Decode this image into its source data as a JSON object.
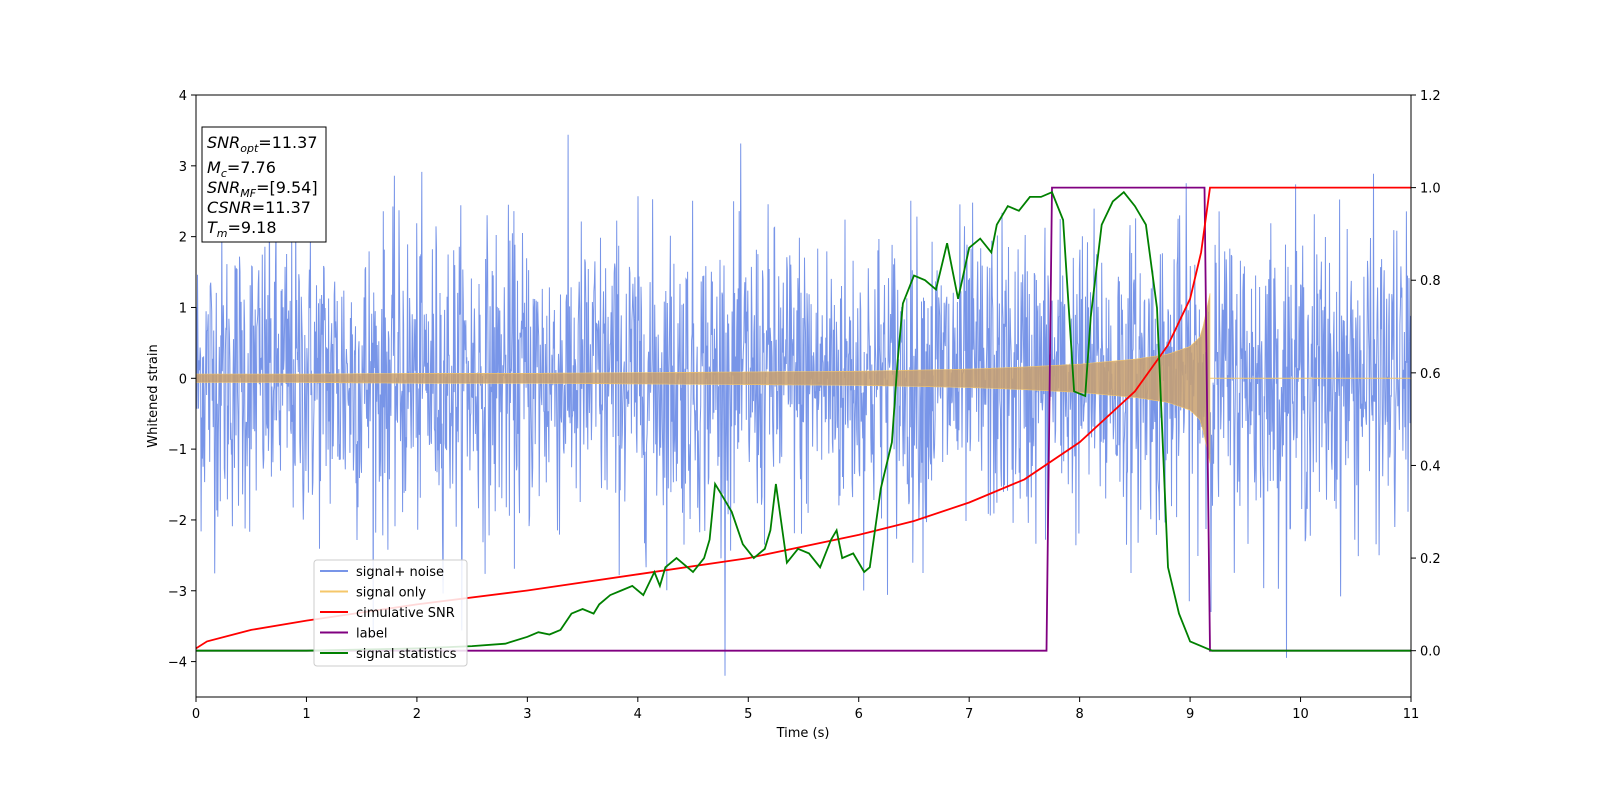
{
  "chart_data": {
    "type": "line",
    "title": "",
    "xlabel": "Time (s)",
    "ylabel": "Whitened strain",
    "y2label": "",
    "xlim": [
      0,
      11
    ],
    "ylim": [
      -4.5,
      4
    ],
    "y2lim": [
      -0.1,
      1.2
    ],
    "xticks": [
      0,
      1,
      2,
      3,
      4,
      5,
      6,
      7,
      8,
      9,
      10,
      11
    ],
    "yticks": [
      -4,
      -3,
      -2,
      -1,
      0,
      1,
      2,
      3,
      4
    ],
    "y2ticks": [
      0.0,
      0.2,
      0.4,
      0.6,
      0.8,
      1.0,
      1.2
    ],
    "grid": false,
    "legend_position": "lower-left",
    "annotation": {
      "lines": [
        {
          "sym": "SNR",
          "sub": "opt",
          "value": "=11.37"
        },
        {
          "sym": "M",
          "sub": "c",
          "value": "=7.76"
        },
        {
          "sym": "SNR",
          "sub": "MF",
          "value": "=[9.54]"
        },
        {
          "sym": "CSNR",
          "sub": "",
          "value": "=11.37"
        },
        {
          "sym": "T",
          "sub": "m",
          "value": "=9.18"
        }
      ]
    },
    "series": [
      {
        "name": "signal+ noise",
        "color": "#7895e8",
        "axis": "left",
        "style": "gaussian noise, amplitude ~1.2, peaks to ~3.5",
        "noise_range": [
          -4.2,
          3.6
        ]
      },
      {
        "name": "signal only",
        "color": "#f5c76a",
        "axis": "left",
        "style": "chirp",
        "envelope": {
          "x": [
            0,
            1,
            2,
            3,
            4,
            5,
            6,
            7,
            7.5,
            8,
            8.5,
            8.8,
            9.0,
            9.1,
            9.18
          ],
          "y": [
            0.06,
            0.06,
            0.07,
            0.07,
            0.08,
            0.09,
            0.1,
            0.13,
            0.16,
            0.2,
            0.27,
            0.34,
            0.45,
            0.6,
            1.2
          ]
        },
        "merger_time": 9.18
      },
      {
        "name": "cimulative SNR",
        "color": "#ff0000",
        "axis": "right",
        "x": [
          0,
          0.1,
          0.5,
          1,
          2,
          3,
          4,
          5,
          6,
          6.5,
          7,
          7.5,
          8,
          8.5,
          8.8,
          9.0,
          9.1,
          9.18,
          11
        ],
        "y": [
          0.005,
          0.02,
          0.045,
          0.065,
          0.1,
          0.13,
          0.165,
          0.2,
          0.25,
          0.28,
          0.32,
          0.37,
          0.45,
          0.56,
          0.66,
          0.76,
          0.86,
          1.0,
          1.0
        ]
      },
      {
        "name": "label",
        "color": "#800080",
        "axis": "right",
        "x": [
          0,
          7.7,
          7.75,
          9.13,
          9.18,
          11
        ],
        "y": [
          0,
          0,
          1,
          1,
          0,
          0
        ]
      },
      {
        "name": "signal statistics",
        "color": "#008000",
        "axis": "right",
        "x": [
          0,
          1,
          2,
          2.5,
          2.8,
          3.0,
          3.1,
          3.2,
          3.3,
          3.4,
          3.5,
          3.6,
          3.65,
          3.75,
          3.85,
          3.95,
          4.05,
          4.15,
          4.2,
          4.25,
          4.35,
          4.5,
          4.6,
          4.65,
          4.7,
          4.75,
          4.85,
          4.95,
          5.05,
          5.15,
          5.2,
          5.25,
          5.35,
          5.45,
          5.55,
          5.65,
          5.75,
          5.8,
          5.85,
          5.95,
          6.05,
          6.1,
          6.2,
          6.3,
          6.35,
          6.4,
          6.5,
          6.6,
          6.7,
          6.8,
          6.9,
          7.0,
          7.1,
          7.2,
          7.25,
          7.35,
          7.45,
          7.55,
          7.65,
          7.75,
          7.85,
          7.95,
          8.05,
          8.1,
          8.2,
          8.3,
          8.4,
          8.5,
          8.6,
          8.7,
          8.8,
          8.9,
          9.0,
          9.1,
          9.15,
          9.2,
          9.3,
          11
        ],
        "y": [
          0,
          0,
          0.005,
          0.01,
          0.015,
          0.03,
          0.04,
          0.035,
          0.045,
          0.08,
          0.09,
          0.08,
          0.1,
          0.12,
          0.13,
          0.14,
          0.12,
          0.17,
          0.14,
          0.18,
          0.2,
          0.17,
          0.2,
          0.24,
          0.36,
          0.34,
          0.3,
          0.23,
          0.2,
          0.22,
          0.26,
          0.36,
          0.19,
          0.22,
          0.21,
          0.18,
          0.24,
          0.26,
          0.2,
          0.21,
          0.17,
          0.18,
          0.35,
          0.45,
          0.62,
          0.75,
          0.81,
          0.8,
          0.78,
          0.88,
          0.76,
          0.87,
          0.89,
          0.86,
          0.92,
          0.96,
          0.95,
          0.98,
          0.98,
          0.99,
          0.93,
          0.56,
          0.55,
          0.72,
          0.92,
          0.97,
          0.99,
          0.96,
          0.92,
          0.74,
          0.18,
          0.08,
          0.02,
          0.01,
          0.005,
          0,
          0,
          0
        ]
      }
    ]
  }
}
